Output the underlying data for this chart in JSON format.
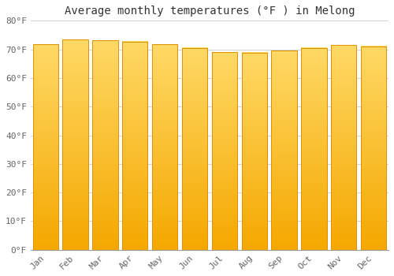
{
  "title": "Average monthly temperatures (°F ) in Melong",
  "months": [
    "Jan",
    "Feb",
    "Mar",
    "Apr",
    "May",
    "Jun",
    "Jul",
    "Aug",
    "Sep",
    "Oct",
    "Nov",
    "Dec"
  ],
  "values": [
    71.8,
    73.5,
    73.1,
    72.7,
    71.8,
    70.5,
    69.1,
    68.9,
    69.5,
    70.5,
    71.5,
    71.1
  ],
  "ylim": [
    0,
    80
  ],
  "yticks": [
    0,
    10,
    20,
    30,
    40,
    50,
    60,
    70,
    80
  ],
  "bar_color_left": "#F5A800",
  "bar_color_right": "#FFD966",
  "bar_edge_color": "#E09000",
  "background_color": "#FFFFFF",
  "grid_color": "#CCCCCC",
  "title_fontsize": 10,
  "tick_fontsize": 8,
  "figsize": [
    5.0,
    3.5
  ],
  "dpi": 100
}
